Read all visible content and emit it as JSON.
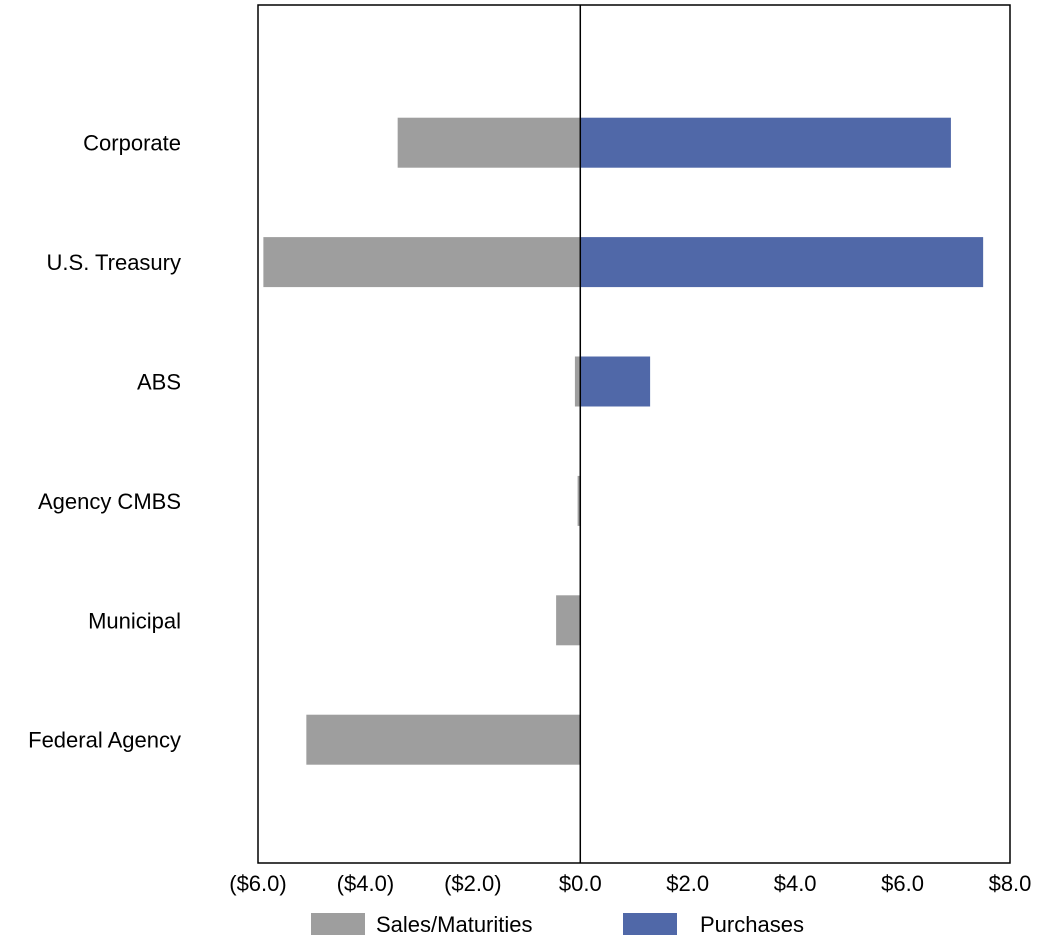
{
  "chart_data": {
    "type": "bar",
    "orientation": "horizontal",
    "stacked": "diverging",
    "categories": [
      "Corporate",
      "U.S. Treasury",
      "ABS",
      "Agency CMBS",
      "Municipal",
      "Federal Agency"
    ],
    "series": [
      {
        "name": "Sales/Maturities",
        "values": [
          -3.4,
          -5.9,
          -0.1,
          -0.05,
          -0.45,
          -5.1
        ]
      },
      {
        "name": "Purchases",
        "values": [
          6.9,
          7.5,
          1.3,
          0,
          0,
          0
        ]
      }
    ],
    "xlim": [
      -6,
      8
    ],
    "x_ticks": [
      -6,
      -4,
      -2,
      0,
      2,
      4,
      6,
      8
    ],
    "x_tick_labels": [
      "($6.0)",
      "($4.0)",
      "($2.0)",
      "$0.0",
      "$2.0",
      "$4.0",
      "$6.0",
      "$8.0"
    ],
    "title": "",
    "xlabel": "",
    "ylabel": "",
    "grid": false,
    "legend_position": "bottom",
    "colors": {
      "Sales/Maturities": "#9e9e9e",
      "Purchases": "#5068a8"
    }
  }
}
